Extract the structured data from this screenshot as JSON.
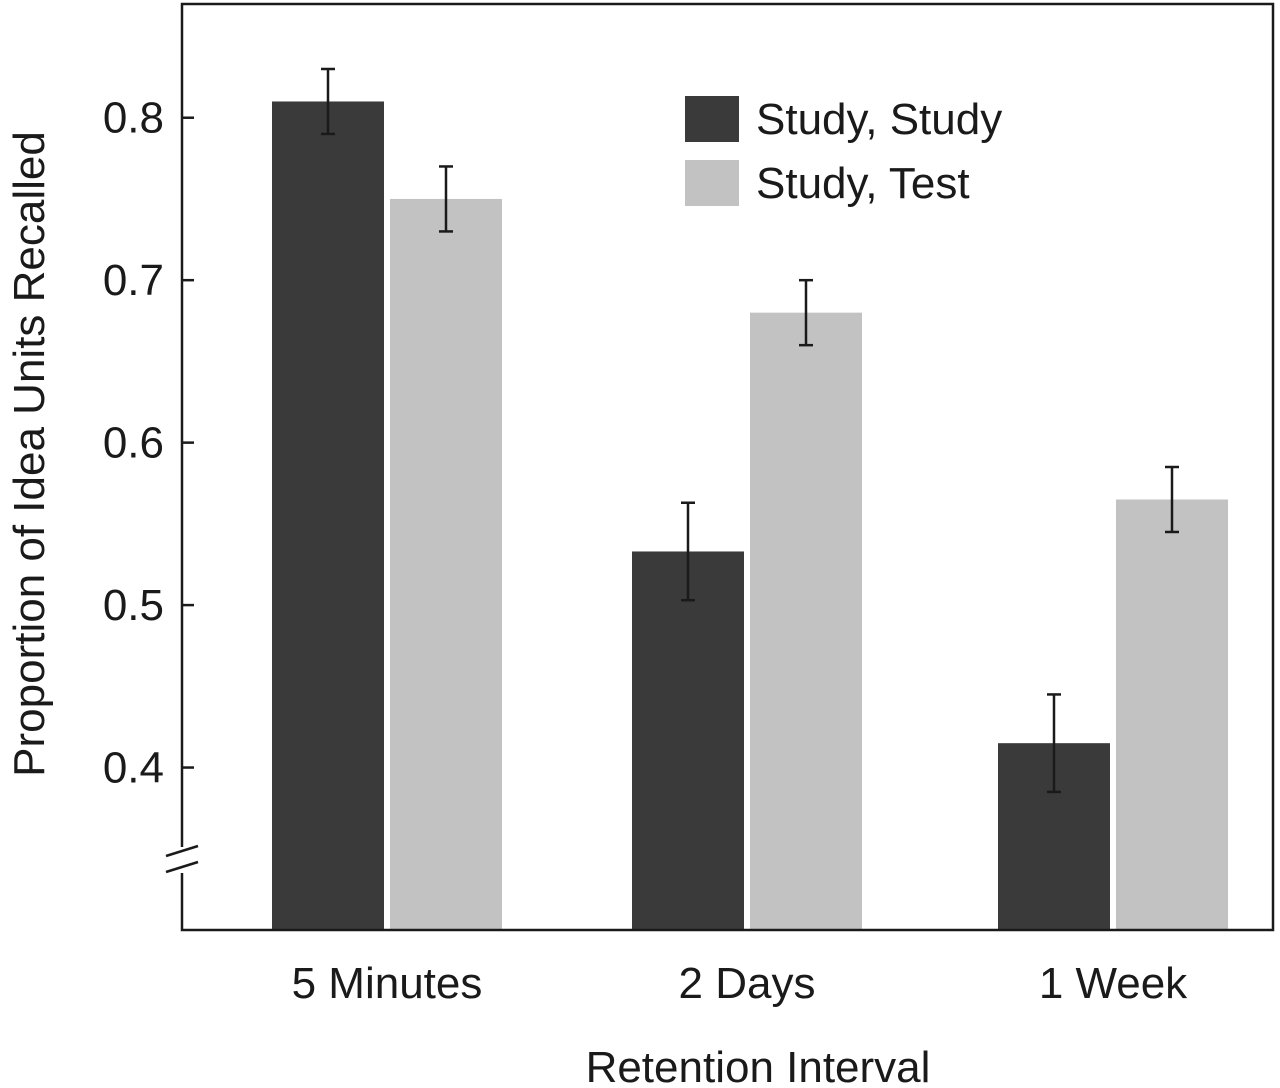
{
  "chart_data": {
    "type": "bar",
    "title": "",
    "xlabel": "Retention Interval",
    "ylabel": "Proportion of Idea Units Recalled",
    "categories": [
      "5 Minutes",
      "2 Days",
      "1 Week"
    ],
    "series": [
      {
        "name": "Study, Study",
        "color": "#3a3a3a",
        "values": [
          0.81,
          0.533,
          0.415
        ],
        "error": [
          0.02,
          0.03,
          0.03
        ]
      },
      {
        "name": "Study, Test",
        "color": "#c2c2c2",
        "values": [
          0.75,
          0.68,
          0.565
        ],
        "error": [
          0.02,
          0.02,
          0.02
        ]
      }
    ],
    "yticks": [
      0.4,
      0.5,
      0.6,
      0.7,
      0.8
    ],
    "ytick_labels": [
      "0.4",
      "0.5",
      "0.6",
      "0.7",
      "0.8"
    ],
    "ylim": [
      0.3,
      0.87
    ],
    "axis_break": true,
    "legend_position": "top-right",
    "grid": false
  }
}
